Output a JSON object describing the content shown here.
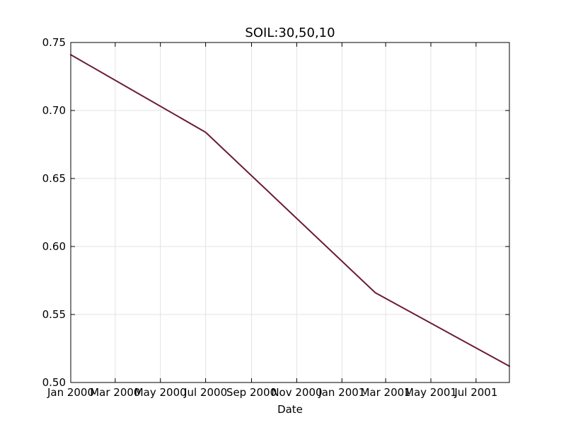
{
  "chart_data": {
    "type": "line",
    "title": "SOIL:30,50,10",
    "xlabel": "Date",
    "ylabel": "",
    "xlim": [
      "2000-01-01",
      "2001-08-15"
    ],
    "ylim": [
      0.5,
      0.75
    ],
    "grid": true,
    "x_ticks": [
      {
        "date": "2000-01-01",
        "label": "Jan 2000"
      },
      {
        "date": "2000-03-01",
        "label": "Mar 2000"
      },
      {
        "date": "2000-05-01",
        "label": "May 2000"
      },
      {
        "date": "2000-07-01",
        "label": "Jul 2000"
      },
      {
        "date": "2000-09-01",
        "label": "Sep 2000"
      },
      {
        "date": "2000-11-01",
        "label": "Nov 2000"
      },
      {
        "date": "2001-01-01",
        "label": "Jan 2001"
      },
      {
        "date": "2001-03-01",
        "label": "Mar 2001"
      },
      {
        "date": "2001-05-01",
        "label": "May 2001"
      },
      {
        "date": "2001-07-01",
        "label": "Jul 2001"
      }
    ],
    "y_ticks": [
      {
        "value": 0.5,
        "label": "0.50"
      },
      {
        "value": 0.55,
        "label": "0.55"
      },
      {
        "value": 0.6,
        "label": "0.60"
      },
      {
        "value": 0.65,
        "label": "0.65"
      },
      {
        "value": 0.7,
        "label": "0.70"
      },
      {
        "value": 0.75,
        "label": "0.75"
      }
    ],
    "series": [
      {
        "color": "#6b1a3a",
        "points": [
          {
            "x": "2000-01-01",
            "y": 0.741
          },
          {
            "x": "2000-07-01",
            "y": 0.684
          },
          {
            "x": "2001-02-15",
            "y": 0.566
          },
          {
            "x": "2001-08-15",
            "y": 0.512
          }
        ]
      }
    ]
  }
}
